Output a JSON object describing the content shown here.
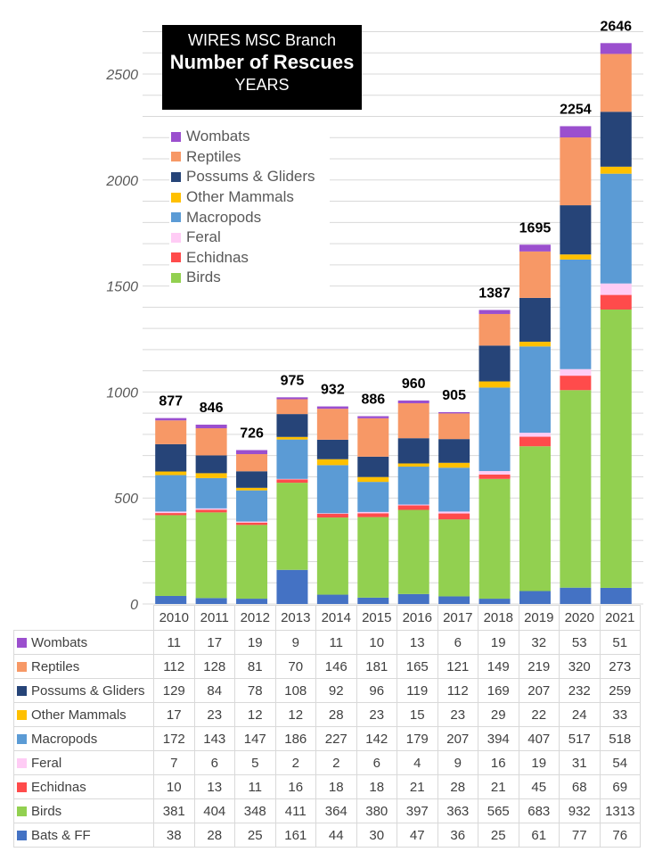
{
  "chart_data": {
    "type": "bar",
    "stacked": true,
    "title": "WIRES MSC Branch",
    "subtitle": "Number of Rescues",
    "xlabel": "YEARS",
    "ylabel": "",
    "ylim": [
      0,
      2700
    ],
    "yticks": [
      0,
      500,
      1000,
      1500,
      2000,
      2500
    ],
    "grid": true,
    "grid_step": 100,
    "legend_position": "top-left",
    "categories": [
      "2010",
      "2011",
      "2012",
      "2013",
      "2014",
      "2015",
      "2016",
      "2017",
      "2018",
      "2019",
      "2020",
      "2021"
    ],
    "totals": [
      877,
      846,
      726,
      975,
      932,
      886,
      960,
      905,
      1387,
      1695,
      2254,
      2646
    ],
    "series": [
      {
        "name": "Bats & FF",
        "color": "#4472c4",
        "values": [
          38,
          28,
          25,
          161,
          44,
          30,
          47,
          36,
          25,
          61,
          77,
          76
        ]
      },
      {
        "name": "Birds",
        "color": "#92d050",
        "values": [
          381,
          404,
          348,
          411,
          364,
          380,
          397,
          363,
          565,
          683,
          932,
          1313
        ]
      },
      {
        "name": "Echidnas",
        "color": "#ff4b4b",
        "values": [
          10,
          13,
          11,
          16,
          18,
          18,
          21,
          28,
          21,
          45,
          68,
          69
        ]
      },
      {
        "name": "Feral",
        "color": "#ffccf5",
        "values": [
          7,
          6,
          5,
          2,
          2,
          6,
          4,
          9,
          16,
          19,
          31,
          54
        ]
      },
      {
        "name": "Macropods",
        "color": "#5b9bd5",
        "values": [
          172,
          143,
          147,
          186,
          227,
          142,
          179,
          207,
          394,
          407,
          517,
          518
        ]
      },
      {
        "name": "Other Mammals",
        "color": "#ffc000",
        "values": [
          17,
          23,
          12,
          12,
          28,
          23,
          15,
          23,
          29,
          22,
          24,
          33
        ]
      },
      {
        "name": "Possums & Gliders",
        "color": "#264478",
        "values": [
          129,
          84,
          78,
          108,
          92,
          96,
          119,
          112,
          169,
          207,
          232,
          259
        ]
      },
      {
        "name": "Reptiles",
        "color": "#f79866",
        "values": [
          112,
          128,
          81,
          70,
          146,
          181,
          165,
          121,
          149,
          219,
          320,
          273
        ]
      },
      {
        "name": "Wombats",
        "color": "#9b4fce",
        "values": [
          11,
          17,
          19,
          9,
          11,
          10,
          13,
          6,
          19,
          32,
          53,
          51
        ]
      }
    ],
    "legend_entries": [
      "Wombats",
      "Reptiles",
      "Possums & Gliders",
      "Other Mammals",
      "Macropods",
      "Feral",
      "Echidnas",
      "Birds"
    ],
    "table_row_order": [
      "Wombats",
      "Reptiles",
      "Possums & Gliders",
      "Other Mammals",
      "Macropods",
      "Feral",
      "Echidnas",
      "Birds",
      "Bats & FF"
    ]
  },
  "title_box": {
    "line1": "WIRES MSC Branch",
    "line2": "Number of Rescues",
    "line3": "YEARS"
  }
}
